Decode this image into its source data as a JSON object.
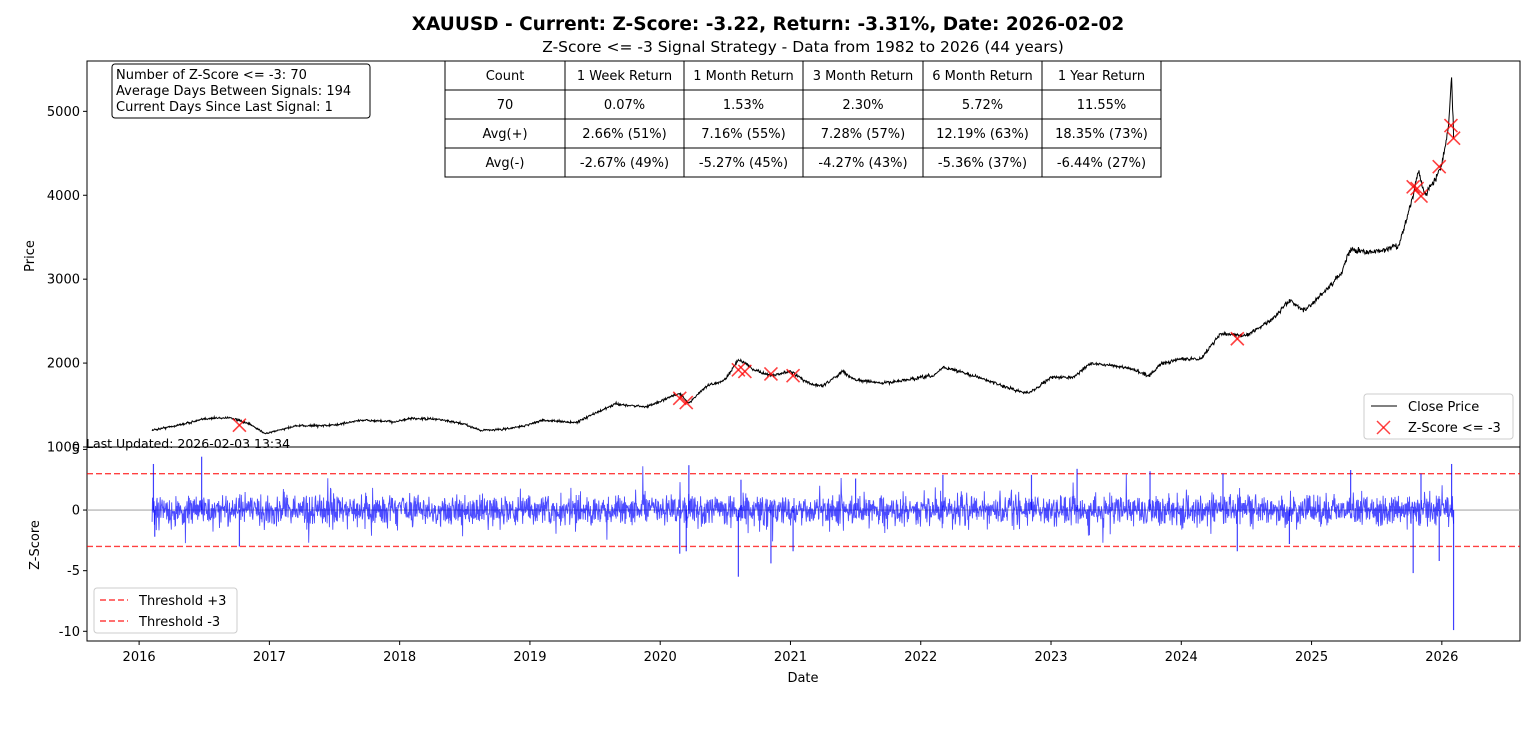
{
  "chart_data": {
    "title": "XAUUSD - Current: Z-Score: -3.22, Return: -3.31%, Date: 2026-02-02",
    "subtitle": "Z-Score <= -3 Signal Strategy - Data from 1982 to 2026 (44 years)",
    "info_box": [
      "Number of Z-Score <= -3: 70",
      "Average Days Between Signals: 194",
      "Current Days Since Last Signal: 1"
    ],
    "last_updated": "Last Updated: 2026-02-03 13:34",
    "stats_table": {
      "header": [
        "Count",
        "1 Week Return",
        "1 Month Return",
        "3 Month Return",
        "6 Month Return",
        "1 Year Return"
      ],
      "rows": [
        [
          "70",
          "0.07%",
          "1.53%",
          "2.30%",
          "5.72%",
          "11.55%"
        ],
        [
          "Avg(+)",
          "2.66% (51%)",
          "7.16% (55%)",
          "7.28% (57%)",
          "12.19% (63%)",
          "18.35% (73%)"
        ],
        [
          "Avg(-)",
          "-2.67% (49%)",
          "-5.27% (45%)",
          "-4.27% (43%)",
          "-5.36% (37%)",
          "-6.44% (27%)"
        ]
      ]
    },
    "price_panel": {
      "type": "line",
      "ylabel": "Price",
      "ylim": [
        1000,
        5600
      ],
      "yticks": [
        1000,
        2000,
        3000,
        4000,
        5000
      ],
      "legend": {
        "position": "lower-right",
        "entries": [
          "Close Price",
          "Z-Score <= -3"
        ]
      },
      "line_color": "#000000",
      "marker_color": "#ff0000",
      "price_anchors": [
        [
          2016.1,
          1200
        ],
        [
          2016.3,
          1260
        ],
        [
          2016.52,
          1340
        ],
        [
          2016.7,
          1350
        ],
        [
          2016.85,
          1270
        ],
        [
          2016.97,
          1160
        ],
        [
          2017.2,
          1250
        ],
        [
          2017.5,
          1260
        ],
        [
          2017.7,
          1320
        ],
        [
          2017.95,
          1300
        ],
        [
          2018.1,
          1340
        ],
        [
          2018.3,
          1330
        ],
        [
          2018.5,
          1270
        ],
        [
          2018.62,
          1200
        ],
        [
          2018.8,
          1210
        ],
        [
          2018.95,
          1250
        ],
        [
          2019.1,
          1320
        ],
        [
          2019.35,
          1290
        ],
        [
          2019.5,
          1400
        ],
        [
          2019.65,
          1510
        ],
        [
          2019.9,
          1480
        ],
        [
          2020.05,
          1580
        ],
        [
          2020.15,
          1640
        ],
        [
          2020.22,
          1520
        ],
        [
          2020.35,
          1720
        ],
        [
          2020.5,
          1800
        ],
        [
          2020.6,
          2050
        ],
        [
          2020.72,
          1920
        ],
        [
          2020.85,
          1850
        ],
        [
          2020.95,
          1880
        ],
        [
          2021.0,
          1900
        ],
        [
          2021.15,
          1750
        ],
        [
          2021.25,
          1730
        ],
        [
          2021.4,
          1900
        ],
        [
          2021.5,
          1800
        ],
        [
          2021.7,
          1760
        ],
        [
          2021.9,
          1800
        ],
        [
          2022.1,
          1850
        ],
        [
          2022.17,
          1950
        ],
        [
          2022.3,
          1900
        ],
        [
          2022.5,
          1800
        ],
        [
          2022.7,
          1690
        ],
        [
          2022.83,
          1640
        ],
        [
          2023.0,
          1830
        ],
        [
          2023.17,
          1830
        ],
        [
          2023.3,
          2000
        ],
        [
          2023.45,
          1970
        ],
        [
          2023.6,
          1940
        ],
        [
          2023.75,
          1850
        ],
        [
          2023.85,
          1990
        ],
        [
          2024.0,
          2050
        ],
        [
          2024.15,
          2050
        ],
        [
          2024.3,
          2350
        ],
        [
          2024.5,
          2330
        ],
        [
          2024.7,
          2520
        ],
        [
          2024.83,
          2750
        ],
        [
          2024.95,
          2620
        ],
        [
          2025.1,
          2850
        ],
        [
          2025.22,
          3050
        ],
        [
          2025.3,
          3350
        ],
        [
          2025.45,
          3320
        ],
        [
          2025.55,
          3350
        ],
        [
          2025.67,
          3400
        ],
        [
          2025.78,
          4000
        ],
        [
          2025.82,
          4300
        ],
        [
          2025.87,
          4000
        ],
        [
          2025.95,
          4200
        ],
        [
          2026.0,
          4350
        ],
        [
          2026.05,
          4800
        ],
        [
          2026.075,
          5400
        ],
        [
          2026.09,
          4700
        ]
      ],
      "signals": [
        [
          2016.77,
          1260
        ],
        [
          2020.15,
          1580
        ],
        [
          2020.2,
          1530
        ],
        [
          2020.6,
          1920
        ],
        [
          2020.65,
          1900
        ],
        [
          2020.85,
          1870
        ],
        [
          2021.02,
          1850
        ],
        [
          2024.43,
          2290
        ],
        [
          2025.78,
          4100
        ],
        [
          2025.81,
          4080
        ],
        [
          2025.84,
          3990
        ],
        [
          2025.98,
          4340
        ],
        [
          2026.07,
          4830
        ],
        [
          2026.09,
          4680
        ]
      ]
    },
    "zscore_panel": {
      "type": "line",
      "xlabel": "Date",
      "ylabel": "Z-Score",
      "xlim": [
        2015.6,
        2026.6
      ],
      "ylim": [
        -10.8,
        5.2
      ],
      "yticks": [
        5,
        0,
        -5,
        -10
      ],
      "xticks": [
        2016,
        2017,
        2018,
        2019,
        2020,
        2021,
        2022,
        2023,
        2024,
        2025,
        2026
      ],
      "thresholds": [
        3,
        -3
      ],
      "line_color": "#0000ff",
      "threshold_color": "#ff0000",
      "legend": {
        "position": "lower-left",
        "entries": [
          "Threshold +3",
          "Threshold -3"
        ]
      },
      "spikes": [
        [
          2016.11,
          3.8
        ],
        [
          2016.12,
          -2.2
        ],
        [
          2016.48,
          4.4
        ],
        [
          2016.77,
          -3.0
        ],
        [
          2020.15,
          -3.6
        ],
        [
          2020.2,
          -3.4
        ],
        [
          2020.22,
          3.7
        ],
        [
          2020.6,
          -5.5
        ],
        [
          2020.62,
          2.5
        ],
        [
          2020.85,
          -4.4
        ],
        [
          2021.02,
          -3.4
        ],
        [
          2021.5,
          2.6
        ],
        [
          2022.17,
          2.9
        ],
        [
          2022.85,
          2.9
        ],
        [
          2023.2,
          3.4
        ],
        [
          2023.76,
          3.2
        ],
        [
          2024.32,
          3.0
        ],
        [
          2024.43,
          -3.4
        ],
        [
          2024.83,
          -2.8
        ],
        [
          2025.3,
          3.3
        ],
        [
          2025.78,
          -5.2
        ],
        [
          2025.84,
          3.0
        ],
        [
          2025.98,
          -4.2
        ],
        [
          2026.075,
          3.8
        ],
        [
          2026.09,
          -9.9
        ]
      ]
    }
  }
}
